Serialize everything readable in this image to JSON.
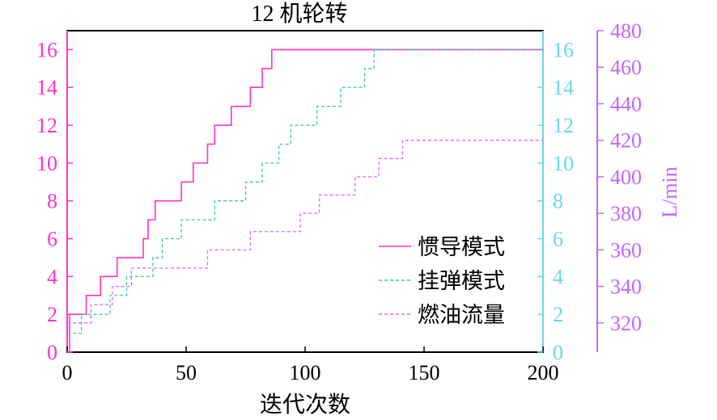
{
  "chart_data": {
    "type": "line",
    "title": "12 机轮转",
    "xlabel": "迭代次数",
    "ylabel_left": "",
    "ylabel_mid": "",
    "ylabel_right": "L/min",
    "xlim": [
      0,
      200
    ],
    "ylim_left": [
      0,
      17
    ],
    "ylim_mid": [
      0,
      17
    ],
    "ylim_right": [
      304,
      480
    ],
    "x_ticks": [
      0,
      50,
      100,
      150,
      200
    ],
    "y_ticks_left": [
      0,
      2,
      4,
      6,
      8,
      10,
      12,
      14,
      16
    ],
    "y_ticks_mid": [
      0,
      2,
      4,
      6,
      8,
      10,
      12,
      14,
      16
    ],
    "y_ticks_right": [
      320,
      340,
      360,
      380,
      400,
      420,
      440,
      460,
      480
    ],
    "legend_position": "bottom-right",
    "grid": false,
    "series": [
      {
        "name": "惯导模式",
        "axis": "left",
        "color": "#ff33cc",
        "style": "solid",
        "steps": [
          [
            0,
            0
          ],
          [
            1,
            2
          ],
          [
            7,
            2
          ],
          [
            8,
            3
          ],
          [
            13,
            3
          ],
          [
            14,
            4
          ],
          [
            20,
            4
          ],
          [
            21,
            5
          ],
          [
            31,
            5
          ],
          [
            32,
            6
          ],
          [
            33,
            6
          ],
          [
            34,
            7
          ],
          [
            36,
            7
          ],
          [
            37,
            8
          ],
          [
            47,
            8
          ],
          [
            48,
            9
          ],
          [
            52,
            9
          ],
          [
            53,
            10
          ],
          [
            58,
            10
          ],
          [
            59,
            11
          ],
          [
            61,
            11
          ],
          [
            62,
            12
          ],
          [
            68,
            12
          ],
          [
            69,
            13
          ],
          [
            76,
            13
          ],
          [
            77,
            14
          ],
          [
            81,
            14
          ],
          [
            82,
            15
          ],
          [
            85,
            15
          ],
          [
            86,
            16
          ],
          [
            200,
            16
          ]
        ]
      },
      {
        "name": "挂弹模式",
        "axis": "mid",
        "color": "#33cc99",
        "style": "dashed",
        "steps": [
          [
            0,
            1
          ],
          [
            5,
            1
          ],
          [
            6,
            2
          ],
          [
            17,
            2
          ],
          [
            18,
            3
          ],
          [
            24,
            3
          ],
          [
            25,
            4
          ],
          [
            35,
            4
          ],
          [
            36,
            5
          ],
          [
            39,
            5
          ],
          [
            40,
            6
          ],
          [
            47,
            6
          ],
          [
            48,
            7
          ],
          [
            61,
            7
          ],
          [
            62,
            8
          ],
          [
            74,
            8
          ],
          [
            75,
            9
          ],
          [
            81,
            9
          ],
          [
            82,
            10
          ],
          [
            88,
            10
          ],
          [
            89,
            11
          ],
          [
            93,
            11
          ],
          [
            94,
            12
          ],
          [
            104,
            12
          ],
          [
            105,
            13
          ],
          [
            114,
            13
          ],
          [
            115,
            14
          ],
          [
            124,
            14
          ],
          [
            125,
            15
          ],
          [
            128,
            15
          ],
          [
            129,
            16
          ],
          [
            200,
            16
          ]
        ]
      },
      {
        "name": "燃油流量",
        "axis": "right",
        "color": "#e066ff",
        "style": "dashed",
        "steps": [
          [
            0,
            320
          ],
          [
            9,
            320
          ],
          [
            10,
            330
          ],
          [
            18,
            330
          ],
          [
            19,
            340
          ],
          [
            26,
            340
          ],
          [
            27,
            350
          ],
          [
            58,
            350
          ],
          [
            59,
            360
          ],
          [
            76,
            360
          ],
          [
            77,
            370
          ],
          [
            97,
            370
          ],
          [
            98,
            380
          ],
          [
            105,
            380
          ],
          [
            106,
            390
          ],
          [
            120,
            390
          ],
          [
            121,
            400
          ],
          [
            130,
            400
          ],
          [
            131,
            410
          ],
          [
            140,
            410
          ],
          [
            141,
            420
          ],
          [
            200,
            420
          ]
        ]
      }
    ]
  }
}
